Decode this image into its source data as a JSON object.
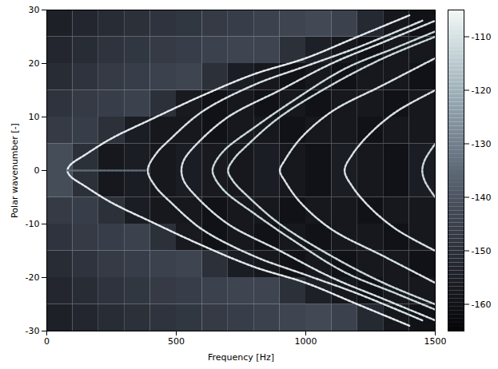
{
  "chart_data": {
    "type": "heatmap",
    "x_label": "Frequency [Hz]",
    "y_label": "Polar wavenumber [-]",
    "xlim": [
      0,
      1500
    ],
    "xticks": [
      0,
      500,
      1000,
      1500
    ],
    "ylim": [
      -30,
      30
    ],
    "yticks": [
      -30,
      -20,
      -10,
      0,
      10,
      20,
      30
    ],
    "x_edges": [
      0,
      100,
      200,
      300,
      400,
      500,
      600,
      700,
      800,
      900,
      1000,
      1100,
      1200,
      1300,
      1400,
      1500
    ],
    "y_edges": [
      -30,
      -25,
      -20,
      -15,
      -10,
      -5,
      0,
      5,
      10,
      15,
      20,
      25,
      30
    ],
    "values": [
      [
        -155,
        -153,
        -151,
        -150,
        -149,
        -148,
        -147,
        -146,
        -145,
        -144,
        -143,
        -145,
        -152,
        -158,
        -160
      ],
      [
        -153,
        -151,
        -149,
        -148,
        -147,
        -146,
        -145,
        -144,
        -144,
        -150,
        -155,
        -158,
        -160,
        -158,
        -158
      ],
      [
        -151,
        -149,
        -147,
        -146,
        -145,
        -144,
        -150,
        -156,
        -158,
        -160,
        -158,
        -160,
        -158,
        -158,
        -160
      ],
      [
        -149,
        -147,
        -146,
        -145,
        -150,
        -157,
        -160,
        -158,
        -160,
        -158,
        -160,
        -158,
        -158,
        -160,
        -158
      ],
      [
        -147,
        -146,
        -150,
        -156,
        -158,
        -158,
        -160,
        -158,
        -158,
        -160,
        -158,
        -158,
        -160,
        -158,
        -158
      ],
      [
        -142,
        -150,
        -158,
        -156,
        -158,
        -156,
        -157,
        -158,
        -156,
        -158,
        -160,
        -156,
        -158,
        -160,
        -156
      ],
      [
        -142,
        -150,
        -158,
        -156,
        -158,
        -156,
        -157,
        -158,
        -156,
        -158,
        -160,
        -156,
        -158,
        -160,
        -156
      ],
      [
        -147,
        -146,
        -150,
        -156,
        -158,
        -158,
        -160,
        -158,
        -158,
        -160,
        -158,
        -158,
        -160,
        -158,
        -158
      ],
      [
        -149,
        -147,
        -146,
        -145,
        -150,
        -157,
        -160,
        -158,
        -160,
        -158,
        -160,
        -158,
        -158,
        -160,
        -158
      ],
      [
        -151,
        -149,
        -147,
        -146,
        -145,
        -144,
        -150,
        -156,
        -158,
        -160,
        -158,
        -160,
        -158,
        -158,
        -160
      ],
      [
        -153,
        -151,
        -149,
        -148,
        -147,
        -146,
        -145,
        -144,
        -144,
        -150,
        -155,
        -158,
        -160,
        -158,
        -158
      ],
      [
        -155,
        -153,
        -151,
        -150,
        -149,
        -148,
        -147,
        -146,
        -145,
        -144,
        -143,
        -145,
        -152,
        -158,
        -160
      ]
    ],
    "ridges": [
      {
        "value": -108,
        "points": [
          [
            1400,
            -29
          ],
          [
            1200,
            -25
          ],
          [
            1000,
            -21
          ],
          [
            800,
            -18
          ],
          [
            600,
            -14
          ],
          [
            400,
            -9.5
          ],
          [
            250,
            -6
          ],
          [
            150,
            -3
          ],
          [
            90,
            -1
          ],
          [
            80,
            0
          ],
          [
            90,
            1
          ],
          [
            150,
            3
          ],
          [
            250,
            6
          ],
          [
            400,
            9.5
          ],
          [
            600,
            14
          ],
          [
            800,
            18
          ],
          [
            1000,
            21
          ],
          [
            1200,
            25
          ],
          [
            1400,
            29
          ]
        ]
      },
      {
        "value": -110,
        "points": [
          [
            1450,
            -28
          ],
          [
            1200,
            -23
          ],
          [
            1000,
            -19.5
          ],
          [
            800,
            -16
          ],
          [
            600,
            -11
          ],
          [
            480,
            -6
          ],
          [
            420,
            -3
          ],
          [
            390,
            0
          ],
          [
            420,
            3
          ],
          [
            480,
            6
          ],
          [
            600,
            11
          ],
          [
            800,
            16
          ],
          [
            1000,
            19.5
          ],
          [
            1200,
            23
          ],
          [
            1450,
            28
          ]
        ]
      },
      {
        "value": -110,
        "points": [
          [
            1500,
            -28
          ],
          [
            1300,
            -24
          ],
          [
            1100,
            -20
          ],
          [
            900,
            -15
          ],
          [
            700,
            -10
          ],
          [
            580,
            -5
          ],
          [
            530,
            -2
          ],
          [
            520,
            0
          ],
          [
            530,
            2
          ],
          [
            580,
            5
          ],
          [
            700,
            10
          ],
          [
            900,
            15
          ],
          [
            1100,
            20
          ],
          [
            1300,
            24
          ],
          [
            1500,
            28
          ]
        ]
      },
      {
        "value": -112,
        "points": [
          [
            1500,
            -26
          ],
          [
            1350,
            -23
          ],
          [
            1150,
            -19
          ],
          [
            950,
            -13
          ],
          [
            800,
            -8
          ],
          [
            690,
            -4
          ],
          [
            650,
            -1.5
          ],
          [
            640,
            0
          ],
          [
            650,
            1.5
          ],
          [
            690,
            4
          ],
          [
            800,
            8
          ],
          [
            950,
            13
          ],
          [
            1150,
            19
          ],
          [
            1350,
            23
          ],
          [
            1500,
            26
          ]
        ]
      },
      {
        "value": -112,
        "points": [
          [
            1500,
            -25
          ],
          [
            1300,
            -21
          ],
          [
            1100,
            -16
          ],
          [
            900,
            -10
          ],
          [
            780,
            -5
          ],
          [
            720,
            -2
          ],
          [
            700,
            0
          ],
          [
            720,
            2
          ],
          [
            780,
            5
          ],
          [
            900,
            10
          ],
          [
            1100,
            16
          ],
          [
            1300,
            21
          ],
          [
            1500,
            25
          ]
        ]
      },
      {
        "value": -110,
        "points": [
          [
            1500,
            -21
          ],
          [
            1300,
            -16
          ],
          [
            1100,
            -11
          ],
          [
            980,
            -6
          ],
          [
            920,
            -2
          ],
          [
            900,
            0
          ],
          [
            920,
            2
          ],
          [
            980,
            6
          ],
          [
            1100,
            11
          ],
          [
            1300,
            16
          ],
          [
            1500,
            21
          ]
        ]
      },
      {
        "value": -110,
        "points": [
          [
            1500,
            -15
          ],
          [
            1350,
            -11
          ],
          [
            1250,
            -7
          ],
          [
            1180,
            -3
          ],
          [
            1150,
            0
          ],
          [
            1180,
            3
          ],
          [
            1250,
            7
          ],
          [
            1350,
            11
          ],
          [
            1500,
            15
          ]
        ]
      },
      {
        "value": -112,
        "points": [
          [
            1500,
            -5
          ],
          [
            1460,
            -2
          ],
          [
            1450,
            0
          ],
          [
            1460,
            2
          ],
          [
            1500,
            5
          ]
        ]
      },
      {
        "value": -135,
        "points": [
          [
            80,
            0
          ],
          [
            380,
            0
          ]
        ]
      }
    ],
    "colorbar": {
      "range": [
        -165,
        -105
      ],
      "ticks": [
        -160,
        -150,
        -140,
        -130,
        -120,
        -110
      ]
    }
  }
}
